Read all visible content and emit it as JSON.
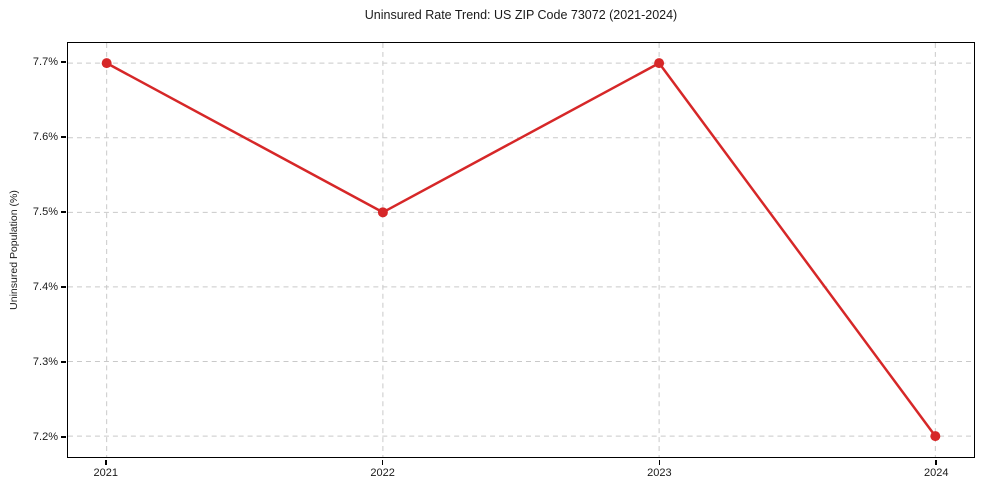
{
  "chart_data": {
    "type": "line",
    "title": "Uninsured Rate Trend: US ZIP Code 73072 (2021-2024)",
    "xlabel": "",
    "ylabel": "Uninsured Population (%)",
    "x": [
      2021,
      2022,
      2023,
      2024
    ],
    "values": [
      7.7,
      7.5,
      7.7,
      7.2
    ],
    "xtick_labels": [
      "2021",
      "2022",
      "2023",
      "2024"
    ],
    "ytick_values": [
      7.2,
      7.3,
      7.4,
      7.5,
      7.6,
      7.7
    ],
    "ytick_labels": [
      "7.2%",
      "7.3%",
      "7.4%",
      "7.5%",
      "7.6%",
      "7.7%"
    ],
    "xlim": [
      2020.86,
      2024.14
    ],
    "ylim": [
      7.172,
      7.727
    ],
    "grid": true,
    "legend": "none",
    "line_color": "#d62728",
    "marker": "circle",
    "marker_radius": 5,
    "line_width": 2.5,
    "grid_color": "#c9c9c9",
    "axis_color": "#000000",
    "background_color": "#ffffff"
  }
}
